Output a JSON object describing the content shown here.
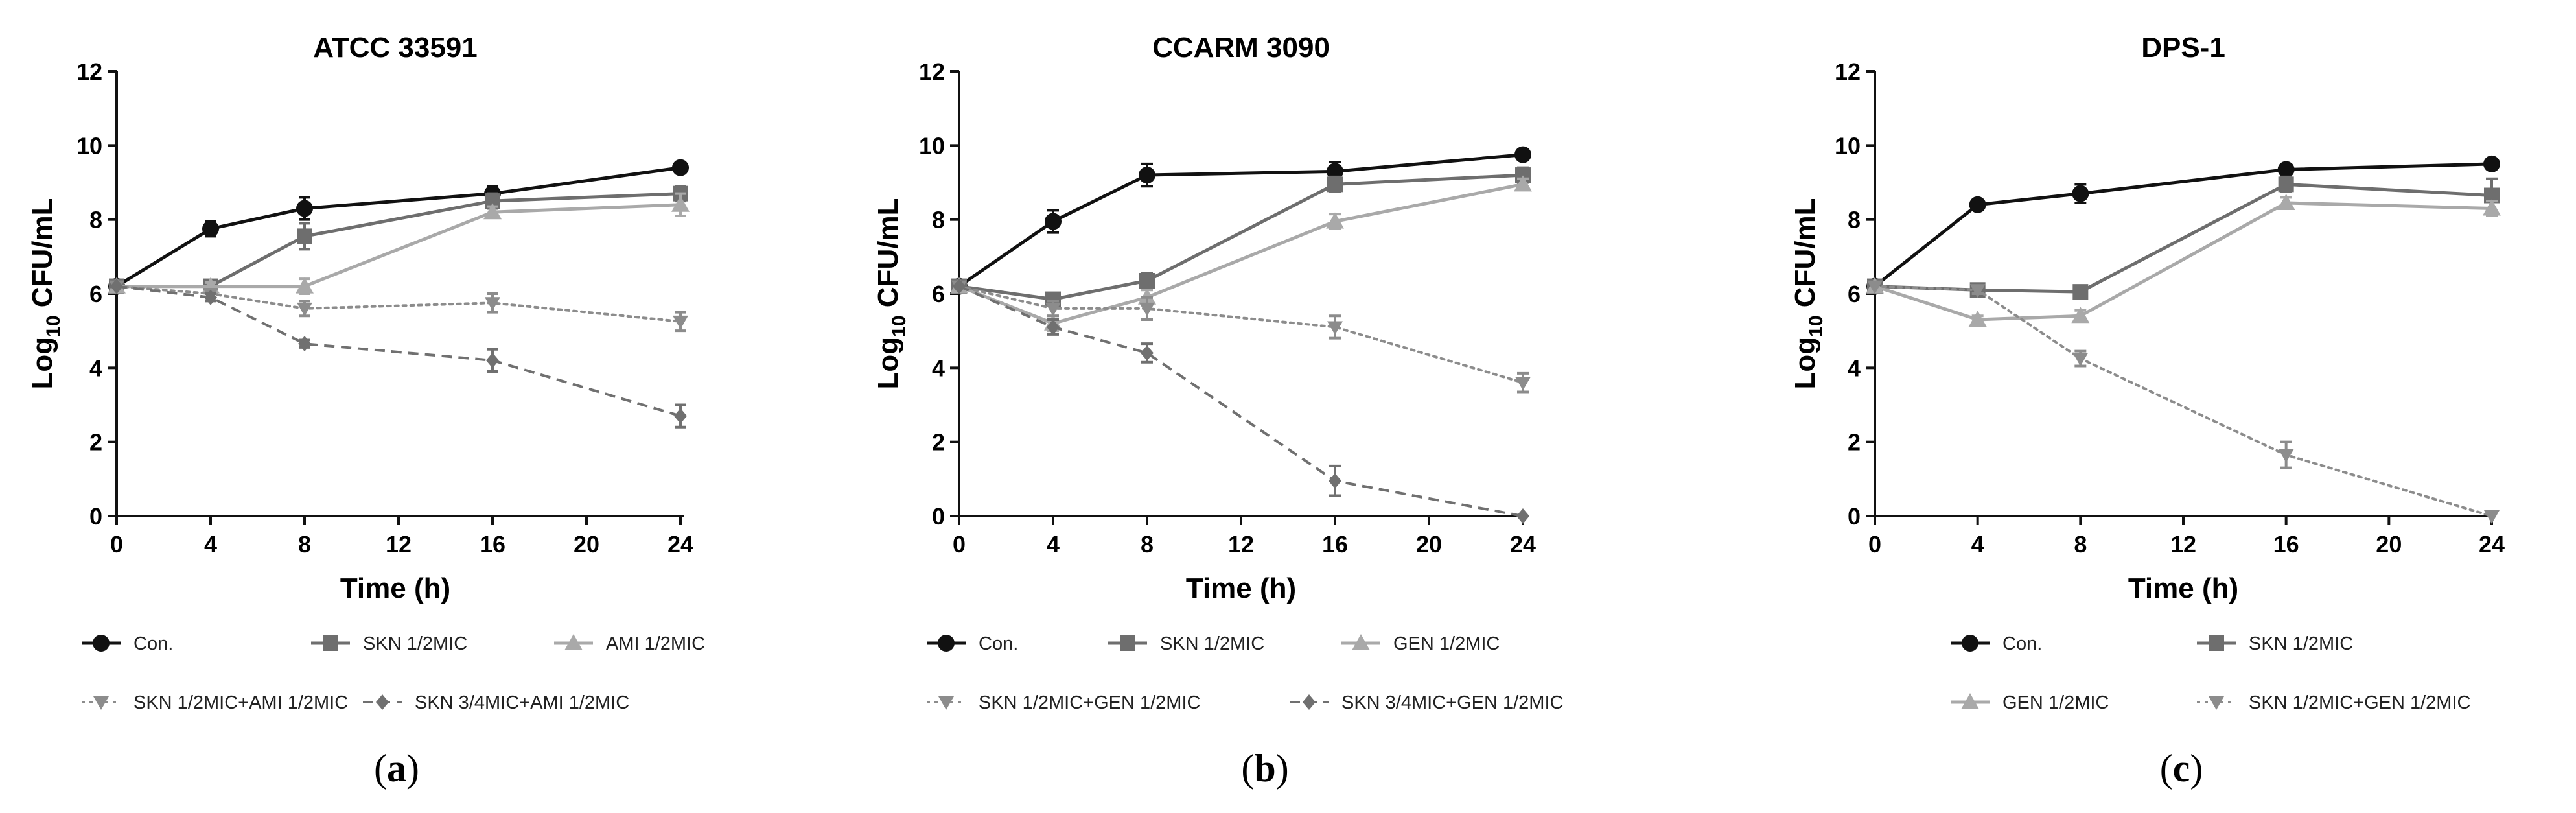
{
  "chart_data": [
    {
      "type": "line",
      "panel_label": "(a)",
      "panel_letter": "a",
      "title": "ATCC 33591",
      "xlabel": "Time (h)",
      "ylabel_main": "Log",
      "ylabel_sub": "10",
      "ylabel_rest": " CFU/mL",
      "xlim": [
        0,
        24
      ],
      "ylim": [
        0,
        12
      ],
      "xticks": [
        0,
        4,
        8,
        12,
        16,
        20,
        24
      ],
      "yticks": [
        0,
        2,
        4,
        6,
        8,
        10,
        12
      ],
      "x": [
        0,
        4,
        8,
        16,
        24
      ],
      "series": [
        {
          "name": "Con.",
          "values": [
            6.2,
            7.75,
            8.3,
            8.7,
            9.4
          ],
          "errors": [
            0,
            0.2,
            0.3,
            0.2,
            0.1
          ],
          "color": "#111111",
          "marker": "circle",
          "dash": "solid"
        },
        {
          "name": "SKN 1/2MIC",
          "values": [
            6.2,
            6.2,
            7.55,
            8.5,
            8.7
          ],
          "errors": [
            0,
            0.15,
            0.35,
            0.2,
            0.2
          ],
          "color": "#6e6e6e",
          "marker": "square",
          "dash": "solid"
        },
        {
          "name": "AMI 1/2MIC",
          "values": [
            6.2,
            6.2,
            6.2,
            8.2,
            8.4
          ],
          "errors": [
            0,
            0.1,
            0.2,
            0.15,
            0.3
          ],
          "color": "#a9a9a9",
          "marker": "triangle-up",
          "dash": "solid"
        },
        {
          "name": "SKN 1/2MIC+AMI 1/2MIC",
          "values": [
            6.2,
            6.0,
            5.6,
            5.75,
            5.25
          ],
          "errors": [
            0,
            0.1,
            0.2,
            0.25,
            0.25
          ],
          "color": "#8c8c8c",
          "marker": "triangle-down",
          "dash": "dotted"
        },
        {
          "name": "SKN 3/4MIC+AMI 1/2MIC",
          "values": [
            6.2,
            5.9,
            4.65,
            4.2,
            2.7
          ],
          "errors": [
            0,
            0.1,
            0.1,
            0.3,
            0.3
          ],
          "color": "#707070",
          "marker": "diamond",
          "dash": "dashed"
        }
      ]
    },
    {
      "type": "line",
      "panel_label": "(b)",
      "panel_letter": "b",
      "title": "CCARM 3090",
      "xlabel": "Time (h)",
      "ylabel_main": "Log",
      "ylabel_sub": "10",
      "ylabel_rest": " CFU/mL",
      "xlim": [
        0,
        24
      ],
      "ylim": [
        0,
        12
      ],
      "xticks": [
        0,
        4,
        8,
        12,
        16,
        20,
        24
      ],
      "yticks": [
        0,
        2,
        4,
        6,
        8,
        10,
        12
      ],
      "x": [
        0,
        4,
        8,
        16,
        24
      ],
      "series": [
        {
          "name": "Con.",
          "values": [
            6.2,
            7.95,
            9.2,
            9.3,
            9.75
          ],
          "errors": [
            0,
            0.3,
            0.3,
            0.25,
            0.1
          ],
          "color": "#111111",
          "marker": "circle",
          "dash": "solid"
        },
        {
          "name": "SKN 1/2MIC",
          "values": [
            6.2,
            5.85,
            6.35,
            8.95,
            9.2
          ],
          "errors": [
            0,
            0.15,
            0.2,
            0.2,
            0.2
          ],
          "color": "#6e6e6e",
          "marker": "square",
          "dash": "solid"
        },
        {
          "name": "GEN 1/2MIC",
          "values": [
            6.2,
            5.2,
            5.9,
            7.95,
            8.95
          ],
          "errors": [
            0,
            0.2,
            0.2,
            0.2,
            0.15
          ],
          "color": "#a9a9a9",
          "marker": "triangle-up",
          "dash": "solid"
        },
        {
          "name": "SKN 1/2MIC+GEN 1/2MIC",
          "values": [
            6.2,
            5.6,
            5.6,
            5.1,
            3.6
          ],
          "errors": [
            0,
            0.2,
            0.3,
            0.3,
            0.25
          ],
          "color": "#8c8c8c",
          "marker": "triangle-down",
          "dash": "dotted"
        },
        {
          "name": "SKN 3/4MIC+GEN 1/2MIC",
          "values": [
            6.2,
            5.1,
            4.4,
            0.95,
            0.0
          ],
          "errors": [
            0,
            0.2,
            0.25,
            0.4,
            0
          ],
          "color": "#707070",
          "marker": "diamond",
          "dash": "dashed"
        }
      ]
    },
    {
      "type": "line",
      "panel_label": "(c)",
      "panel_letter": "c",
      "title": "DPS-1",
      "xlabel": "Time (h)",
      "ylabel_main": "Log",
      "ylabel_sub": "10",
      "ylabel_rest": " CFU/mL",
      "xlim": [
        0,
        24
      ],
      "ylim": [
        0,
        12
      ],
      "xticks": [
        0,
        4,
        8,
        12,
        16,
        20,
        24
      ],
      "yticks": [
        0,
        2,
        4,
        6,
        8,
        10,
        12
      ],
      "x": [
        0,
        4,
        8,
        16,
        24
      ],
      "series": [
        {
          "name": "Con.",
          "values": [
            6.2,
            8.4,
            8.7,
            9.35,
            9.5
          ],
          "errors": [
            0,
            0.1,
            0.25,
            0.1,
            0.1
          ],
          "color": "#111111",
          "marker": "circle",
          "dash": "solid"
        },
        {
          "name": "SKN 1/2MIC",
          "values": [
            6.2,
            6.1,
            6.05,
            8.95,
            8.65
          ],
          "errors": [
            0,
            0.1,
            0.1,
            0.2,
            0.45
          ],
          "color": "#6e6e6e",
          "marker": "square",
          "dash": "solid"
        },
        {
          "name": "GEN 1/2MIC",
          "values": [
            6.2,
            5.3,
            5.4,
            8.45,
            8.3
          ],
          "errors": [
            0,
            0.1,
            0.15,
            0.15,
            0.2
          ],
          "color": "#a9a9a9",
          "marker": "triangle-up",
          "dash": "solid"
        },
        {
          "name": "SKN 1/2MIC+GEN 1/2MIC",
          "values": [
            6.2,
            6.1,
            4.25,
            1.65,
            0.0
          ],
          "errors": [
            0,
            0.1,
            0.2,
            0.35,
            0
          ],
          "color": "#8c8c8c",
          "marker": "triangle-down",
          "dash": "dotted"
        }
      ]
    }
  ]
}
